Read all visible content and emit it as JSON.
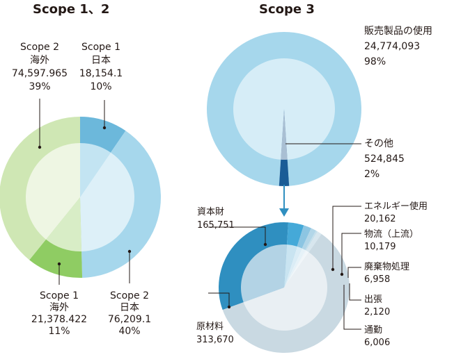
{
  "chart_data": [
    {
      "type": "pie",
      "title": "Scope 1、2",
      "slices": [
        {
          "name": "Scope 1 日本",
          "lines": [
            "Scope 1",
            "日本",
            "18,154.1",
            "10%"
          ],
          "value": 18154.1,
          "percent": 10,
          "outer_color": "#6cb8db",
          "inner_color": "#c3e4f2"
        },
        {
          "name": "Scope 2 日本",
          "lines": [
            "Scope 2",
            "日本",
            "76,209.1",
            "40%"
          ],
          "value": 76209.1,
          "percent": 40,
          "outer_color": "#a6d7ec",
          "inner_color": "#ddf0f8"
        },
        {
          "name": "Scope 1 海外",
          "lines": [
            "Scope 1",
            "海外",
            "21,378.422",
            "11%"
          ],
          "value": 21378.422,
          "percent": 11,
          "outer_color": "#8fcc63",
          "inner_color": "#d8edc6"
        },
        {
          "name": "Scope 2 海外",
          "lines": [
            "Scope 2",
            "海外",
            "74,597.965",
            "39%"
          ],
          "value": 74597.965,
          "percent": 39,
          "outer_color": "#cfe7b4",
          "inner_color": "#eef6e3"
        }
      ]
    },
    {
      "type": "pie",
      "title": "Scope 3",
      "slices": [
        {
          "name": "販売製品の使用",
          "lines": [
            "販売製品の使用",
            "24,774,093",
            "98%"
          ],
          "value": 24774093,
          "percent": 98,
          "outer_color": "#a6d7ec",
          "inner_color": "#d6edf7"
        },
        {
          "name": "その他",
          "lines": [
            "その他",
            "524,845",
            "2%"
          ],
          "value": 524845,
          "percent": 2,
          "outer_color": "#1a5c96",
          "inner_color": "#a9bfd3"
        }
      ]
    },
    {
      "type": "pie",
      "title": "",
      "slices": [
        {
          "name": "資本財",
          "lines": [
            "資本財",
            "165,751"
          ],
          "value": 165751,
          "outer_color": "#2f8fc0",
          "inner_color": "#b3d3e5"
        },
        {
          "name": "エネルギー使用",
          "lines": [
            "エネルギー使用",
            "20,162"
          ],
          "value": 20162,
          "outer_color": "#45a9d8",
          "inner_color": "#c9e4f1"
        },
        {
          "name": "物流（上流）",
          "lines": [
            "物流（上流）",
            "10,179"
          ],
          "value": 10179,
          "outer_color": "#8cc5e2",
          "inner_color": "#dbedf6"
        },
        {
          "name": "廃棄物処理",
          "lines": [
            "廃棄物処理",
            "6,958"
          ],
          "value": 6958,
          "outer_color": "#b2d6e8",
          "inner_color": "#e6f2f8"
        },
        {
          "name": "出張",
          "lines": [
            "出張",
            "2,120"
          ],
          "value": 2120,
          "outer_color": "#c5dfeb",
          "inner_color": "#edf5f9"
        },
        {
          "name": "通勤",
          "lines": [
            "通勤",
            "6,006"
          ],
          "value": 6006,
          "outer_color": "#d7e6ee",
          "inner_color": "#f1f6f9"
        },
        {
          "name": "原材料",
          "lines": [
            "原材料",
            "313,670"
          ],
          "value": 313670,
          "outer_color": "#c9d9e2",
          "inner_color": "#e9eff3"
        }
      ]
    }
  ]
}
